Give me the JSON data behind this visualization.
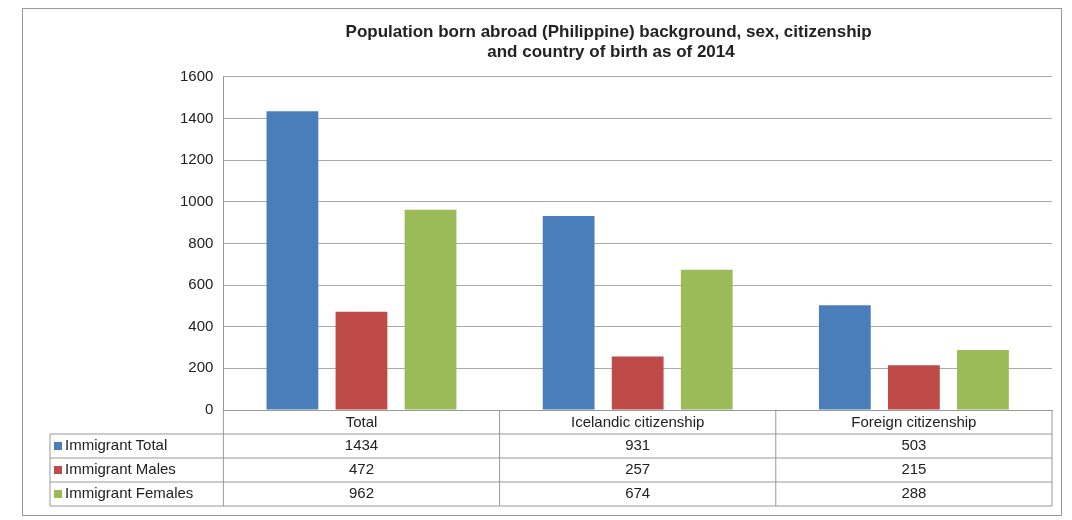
{
  "chart_data": {
    "type": "bar",
    "title": "Population born abroad (Philippine) background, sex, citizenship  and country of birth as of 2014",
    "categories": [
      "Total",
      "Icelandic citizenship",
      "Foreign citizenship"
    ],
    "series": [
      {
        "name": "Immigrant Total",
        "color": "#4a7ebb",
        "values": [
          1434,
          931,
          503
        ]
      },
      {
        "name": "Immigrant Males",
        "color": "#be4b48",
        "values": [
          472,
          257,
          215
        ]
      },
      {
        "name": "Immigrant Females",
        "color": "#9bbb59",
        "values": [
          962,
          674,
          288
        ]
      }
    ],
    "ylim": [
      0,
      1600
    ],
    "yticks": [
      0,
      200,
      400,
      600,
      800,
      1000,
      1200,
      1400,
      1600
    ],
    "grid": "y",
    "legend": "bottom",
    "data_labels": true
  }
}
